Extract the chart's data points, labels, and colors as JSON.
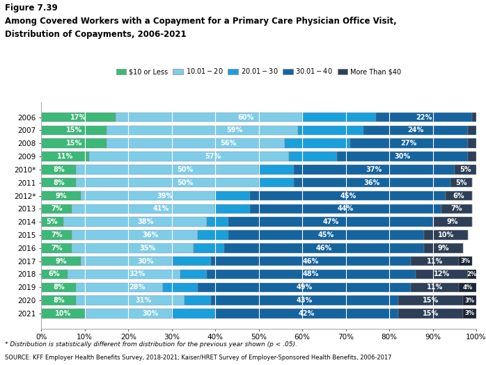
{
  "title_line1": "Figure 7.39",
  "title_line2": "Among Covered Workers with a Copayment for a Primary Care Physician Office Visit,",
  "title_line3": "Distribution of Copayments, 2006-2021",
  "years": [
    "2006",
    "2007",
    "2008",
    "2009",
    "2010*",
    "2011",
    "2012*",
    "2013",
    "2014",
    "2015",
    "2016",
    "2017",
    "2018",
    "2019",
    "2020",
    "2021"
  ],
  "categories": [
    "$10 or Less",
    "$10.01 - $20",
    "$20.01 - $30",
    "$30.01 - $40",
    "More Than $40"
  ],
  "seg_colors": [
    "#3cb878",
    "#7ecde8",
    "#1a9fdd",
    "#1464a0",
    "#2e4057"
  ],
  "c1": [
    17,
    15,
    15,
    11,
    8,
    8,
    9,
    7,
    5,
    7,
    7,
    9,
    6,
    8,
    8,
    10
  ],
  "c2": [
    43,
    44,
    41,
    46,
    42,
    42,
    31,
    33,
    33,
    29,
    28,
    21,
    26,
    20,
    25,
    20
  ],
  "c3": [
    17,
    15,
    15,
    11,
    8,
    8,
    8,
    8,
    5,
    7,
    7,
    9,
    6,
    8,
    6,
    10
  ],
  "c4": [
    22,
    24,
    27,
    30,
    37,
    36,
    45,
    44,
    47,
    45,
    46,
    46,
    48,
    49,
    43,
    42
  ],
  "c5": [
    1,
    2,
    2,
    2,
    5,
    5,
    6,
    7,
    9,
    10,
    9,
    11,
    12,
    11,
    15,
    15
  ],
  "c6": [
    0,
    0,
    0,
    0,
    0,
    0,
    0,
    0,
    0,
    0,
    0,
    3,
    2,
    4,
    3,
    3
  ],
  "labels_c1": [
    17,
    15,
    15,
    11,
    8,
    8,
    9,
    7,
    5,
    7,
    7,
    9,
    6,
    8,
    8,
    10
  ],
  "labels_c23": [
    60,
    59,
    56,
    57,
    50,
    50,
    39,
    41,
    38,
    36,
    35,
    30,
    32,
    28,
    31,
    30
  ],
  "labels_c4": [
    22,
    24,
    27,
    30,
    37,
    36,
    45,
    44,
    47,
    45,
    46,
    46,
    48,
    49,
    43,
    42
  ],
  "labels_c5": [
    1,
    2,
    2,
    2,
    5,
    5,
    6,
    7,
    9,
    10,
    9,
    11,
    12,
    11,
    15,
    15
  ],
  "labels_c6": [
    0,
    0,
    0,
    0,
    0,
    0,
    0,
    0,
    0,
    0,
    0,
    3,
    2,
    4,
    3,
    3
  ],
  "footnote": "* Distribution is statistically different from distribution for the previous year shown (p < .05).",
  "source": "SOURCE: KFF Employer Health Benefits Survey, 2018-2021; Kaiser/HRET Survey of Employer-Sponsored Health Benefits, 2006-2017",
  "bg_color": "#ffffff"
}
